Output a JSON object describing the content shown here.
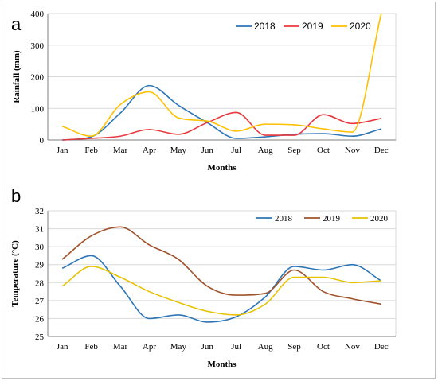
{
  "chart_data": [
    {
      "type": "line",
      "panel_label": "a",
      "xlabel": "Months",
      "ylabel": "Rainfall (mm)",
      "ylim": [
        0,
        400
      ],
      "yticks": [
        0,
        100,
        200,
        300,
        400
      ],
      "categories": [
        "Jan",
        "Feb",
        "Mar",
        "Apr",
        "May",
        "Jun",
        "Jul",
        "Aug",
        "Sep",
        "Oct",
        "Nov",
        "Dec"
      ],
      "grid": true,
      "legend_position": "top-right",
      "series": [
        {
          "name": "2018",
          "color": "#2e75b6",
          "values": [
            0,
            10,
            85,
            172,
            110,
            55,
            5,
            10,
            18,
            20,
            12,
            35
          ]
        },
        {
          "name": "2019",
          "color": "#e8383d",
          "values": [
            0,
            5,
            12,
            33,
            18,
            55,
            87,
            15,
            15,
            80,
            52,
            68
          ]
        },
        {
          "name": "2020",
          "color": "#ffc000",
          "values": [
            43,
            12,
            112,
            152,
            70,
            60,
            28,
            50,
            48,
            35,
            25,
            400
          ]
        }
      ]
    },
    {
      "type": "line",
      "panel_label": "b",
      "xlabel": "Months",
      "ylabel": "Temperature (°C)",
      "ylim": [
        25,
        32
      ],
      "yticks": [
        25,
        26,
        27,
        28,
        29,
        30,
        31,
        32
      ],
      "categories": [
        "Jan",
        "Feb",
        "Mar",
        "Apr",
        "May",
        "Jun",
        "Jul",
        "Aug",
        "Sep",
        "Oct",
        "Nov",
        "Dec"
      ],
      "grid": true,
      "legend_position": "top-right",
      "series": [
        {
          "name": "2018",
          "color": "#2e75b6",
          "values": [
            28.8,
            29.5,
            27.8,
            26.0,
            26.2,
            25.8,
            26.1,
            27.2,
            28.9,
            28.7,
            29.0,
            28.1
          ]
        },
        {
          "name": "2019",
          "color": "#a0522d",
          "values": [
            29.3,
            30.6,
            31.1,
            30.1,
            29.3,
            27.8,
            27.3,
            27.4,
            28.7,
            27.5,
            27.1,
            26.8
          ]
        },
        {
          "name": "2020",
          "color": "#e6c200",
          "values": [
            27.8,
            28.9,
            28.3,
            27.5,
            26.9,
            26.4,
            26.2,
            26.8,
            28.3,
            28.3,
            28.0,
            28.1
          ]
        }
      ]
    }
  ]
}
